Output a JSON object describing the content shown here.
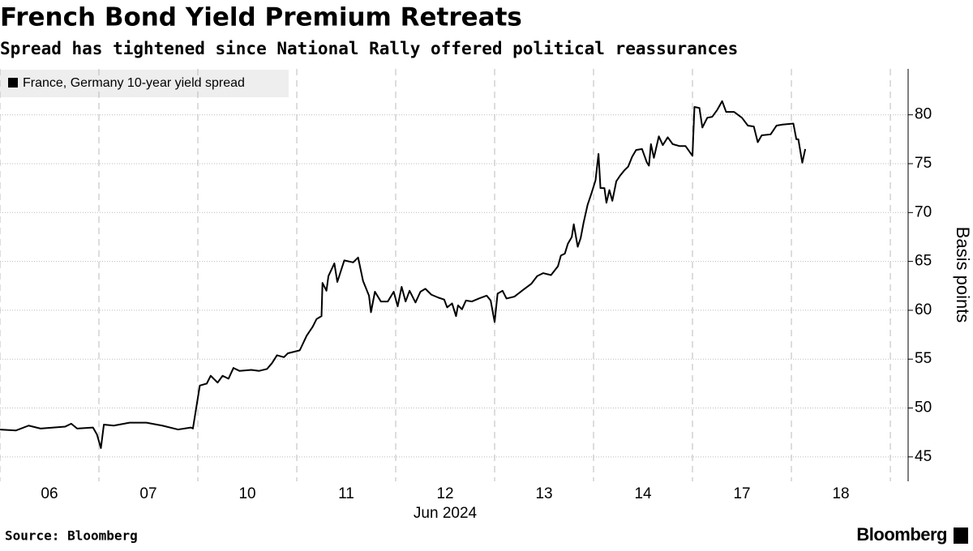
{
  "chart_data": {
    "type": "line",
    "title": "French Bond Yield Premium Retreats",
    "subtitle": "Spread has tightened since National Rally offered political reassurances",
    "y_label": "Basis points",
    "x_label": "Jun 2024",
    "source": "Source: Bloomberg",
    "brand": "Bloomberg",
    "xlim": [
      0,
      9.18
    ],
    "xticks": [
      {
        "value": 0.5,
        "label": "06"
      },
      {
        "value": 1.5,
        "label": "07"
      },
      {
        "value": 2.5,
        "label": "10"
      },
      {
        "value": 3.5,
        "label": "11"
      },
      {
        "value": 4.5,
        "label": "12"
      },
      {
        "value": 5.5,
        "label": "13"
      },
      {
        "value": 6.5,
        "label": "14"
      },
      {
        "value": 7.5,
        "label": "17"
      },
      {
        "value": 8.5,
        "label": "18"
      }
    ],
    "ylim": [
      42.5,
      84.7
    ],
    "yticks": [
      45,
      50,
      55,
      60,
      65,
      70,
      75,
      80
    ],
    "grid": true,
    "legend": "top-left",
    "x": [
      0,
      0.16,
      0.29,
      0.41,
      0.66,
      0.72,
      0.78,
      0.94,
      0.98,
      1.02,
      1.05,
      1.15,
      1.31,
      1.48,
      1.64,
      1.8,
      1.93,
      1.95,
      2.02,
      2.09,
      2.13,
      2.2,
      2.25,
      2.31,
      2.36,
      2.42,
      2.54,
      2.62,
      2.7,
      2.75,
      2.8,
      2.87,
      2.91,
      3.03,
      3.1,
      3.16,
      3.2,
      3.25,
      3.26,
      3.3,
      3.32,
      3.38,
      3.41,
      3.48,
      3.57,
      3.62,
      3.67,
      3.73,
      3.75,
      3.79,
      3.85,
      3.92,
      3.98,
      4.02,
      4.06,
      4.1,
      4.14,
      4.2,
      4.25,
      4.3,
      4.36,
      4.43,
      4.49,
      4.52,
      4.57,
      4.61,
      4.63,
      4.67,
      4.71,
      4.77,
      4.84,
      4.92,
      4.96,
      5.0,
      5.03,
      5.08,
      5.12,
      5.2,
      5.29,
      5.37,
      5.43,
      5.49,
      5.57,
      5.64,
      5.67,
      5.71,
      5.74,
      5.78,
      5.8,
      5.84,
      5.87,
      5.9,
      5.94,
      5.98,
      6.02,
      6.05,
      6.07,
      6.11,
      6.13,
      6.16,
      6.19,
      6.23,
      6.27,
      6.31,
      6.35,
      6.39,
      6.43,
      6.49,
      6.54,
      6.56,
      6.58,
      6.61,
      6.66,
      6.7,
      6.75,
      6.8,
      6.87,
      6.93,
      7.0,
      7.02,
      7.07,
      7.1,
      7.15,
      7.2,
      7.25,
      7.3,
      7.34,
      7.42,
      7.5,
      7.56,
      7.62,
      7.66,
      7.7,
      7.79,
      7.85,
      7.91,
      8.02,
      8.05,
      8.07,
      8.11,
      8.14
    ],
    "series": [
      {
        "name": "France, Germany 10-year yield spread",
        "color": "#000000",
        "values": [
          47.8,
          47.7,
          48.2,
          47.9,
          48.1,
          48.4,
          47.9,
          48.0,
          47.3,
          45.9,
          48.3,
          48.2,
          48.5,
          48.5,
          48.2,
          47.8,
          48.0,
          47.9,
          52.3,
          52.5,
          53.3,
          52.6,
          53.3,
          53.0,
          54.1,
          53.8,
          53.9,
          53.8,
          54.0,
          54.6,
          55.4,
          55.2,
          55.6,
          55.9,
          57.4,
          58.3,
          59.1,
          59.4,
          62.8,
          62.0,
          63.5,
          64.8,
          62.9,
          65.1,
          64.9,
          65.4,
          63.0,
          61.5,
          59.8,
          61.9,
          60.9,
          60.9,
          61.9,
          60.4,
          62.4,
          60.9,
          62.0,
          60.8,
          61.9,
          62.2,
          61.6,
          61.3,
          61.1,
          60.3,
          60.7,
          59.4,
          60.5,
          60.1,
          61.0,
          60.9,
          61.2,
          61.5,
          61.0,
          58.8,
          61.7,
          62.0,
          61.2,
          61.4,
          62.1,
          62.7,
          63.5,
          63.8,
          63.6,
          64.5,
          65.6,
          65.8,
          66.8,
          67.5,
          68.8,
          66.5,
          67.4,
          69.0,
          70.8,
          72.0,
          73.3,
          76.0,
          72.5,
          72.5,
          71.0,
          72.3,
          71.2,
          73.2,
          73.8,
          74.3,
          74.7,
          75.7,
          76.4,
          76.5,
          75.1,
          74.8,
          77.0,
          75.6,
          77.8,
          76.9,
          77.7,
          77.0,
          76.8,
          76.8,
          75.8,
          80.8,
          80.7,
          78.7,
          79.7,
          79.8,
          80.5,
          81.4,
          80.3,
          80.3,
          79.7,
          78.9,
          78.8,
          77.2,
          77.9,
          78.0,
          78.9,
          79.0,
          79.1,
          77.5,
          77.5,
          75.1,
          76.5
        ]
      }
    ]
  }
}
